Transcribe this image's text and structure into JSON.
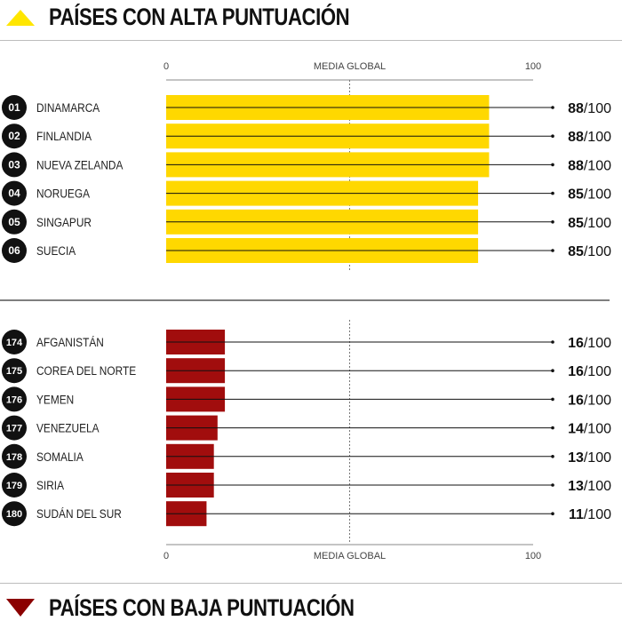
{
  "header_top": {
    "title": "PAÍSES CON ALTA PUNTUACIÓN",
    "triangle_color": "#ffe600"
  },
  "header_bottom": {
    "title": "PAÍSES CON BAJA PUNTUACIÓN",
    "triangle_color": "#8b0000"
  },
  "colors": {
    "high": "#ffd800",
    "low": "#a10d0d"
  },
  "chart_data": [
    {
      "type": "bar",
      "orientation": "horizontal",
      "xlim": [
        0,
        100
      ],
      "axis_ticks": [
        "0",
        "100"
      ],
      "axis_mid_label": "MEDIA GLOBAL",
      "reference_value": 50,
      "ranks": [
        "01",
        "02",
        "03",
        "04",
        "05",
        "06"
      ],
      "categories": [
        "DINAMARCA",
        "FINLANDIA",
        "NUEVA ZELANDA",
        "NORUEGA",
        "SINGAPUR",
        "SUECIA"
      ],
      "values": [
        88,
        88,
        88,
        85,
        85,
        85
      ],
      "max_label": "/100",
      "axis_position": "top"
    },
    {
      "type": "bar",
      "orientation": "horizontal",
      "xlim": [
        0,
        100
      ],
      "axis_ticks": [
        "0",
        "100"
      ],
      "axis_mid_label": "MEDIA GLOBAL",
      "reference_value": 50,
      "ranks": [
        "174",
        "175",
        "176",
        "177",
        "178",
        "179",
        "180"
      ],
      "categories": [
        "AFGANISTÁN",
        "COREA DEL NORTE",
        "YEMEN",
        "VENEZUELA",
        "SOMALIA",
        "SIRIA",
        "SUDÁN DEL SUR"
      ],
      "values": [
        16,
        16,
        16,
        14,
        13,
        13,
        11
      ],
      "max_label": "/100",
      "axis_position": "bottom"
    }
  ]
}
